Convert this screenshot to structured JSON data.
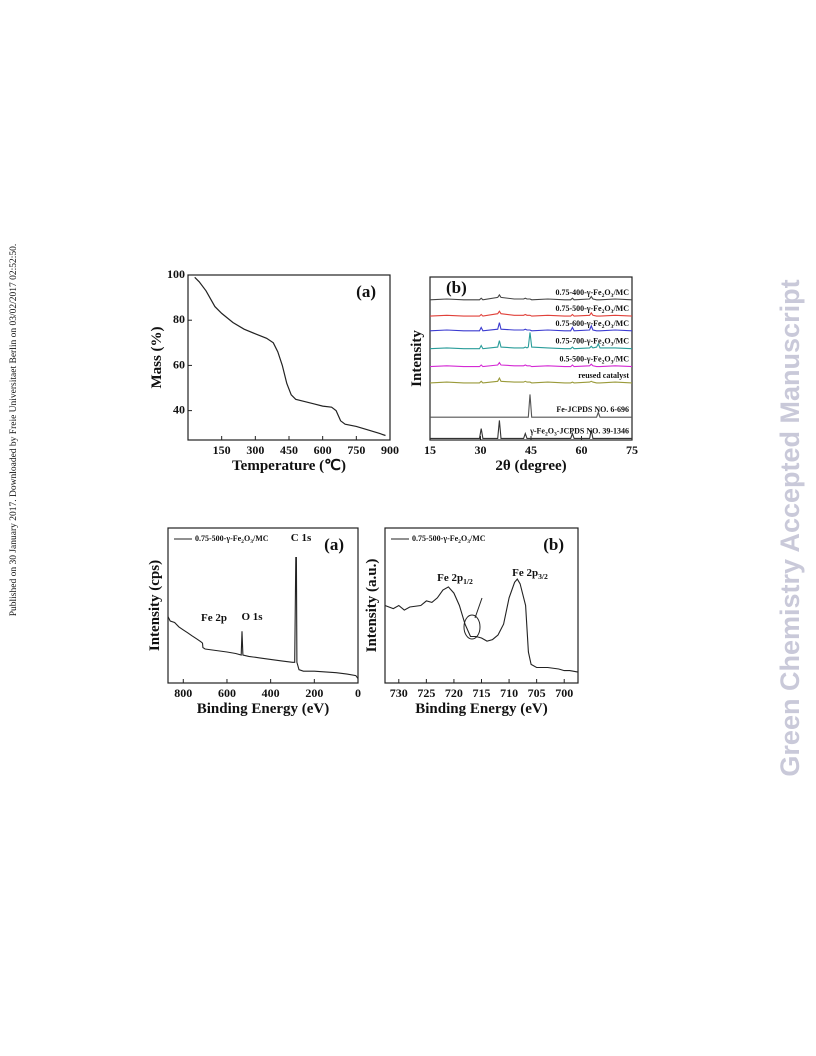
{
  "side_note": "Published on 30 January 2017. Downloaded by Freie Universitaet Berlin on 03/02/2017 02:52:50.",
  "watermark": "Green Chemistry Accepted Manuscript",
  "chart_data": [
    {
      "type": "line",
      "panel_label": "(a)",
      "x_label": "Temperature (℃)",
      "y_label": "Mass (%)",
      "color": "#222222",
      "x": [
        30,
        50,
        80,
        120,
        150,
        200,
        250,
        300,
        350,
        380,
        400,
        420,
        440,
        460,
        480,
        520,
        560,
        600,
        640,
        660,
        680,
        700,
        750,
        800,
        850,
        880
      ],
      "values": [
        99,
        97,
        93,
        86,
        83,
        79,
        76,
        74,
        72,
        70,
        66,
        60,
        52,
        47,
        45,
        44,
        43,
        42,
        41.5,
        40,
        35.5,
        34,
        33,
        31.5,
        30,
        29
      ],
      "xlim": [
        0,
        900
      ],
      "xticks": [
        150,
        300,
        450,
        600,
        750,
        900
      ],
      "ylim": [
        27,
        100
      ],
      "yticks": [
        40,
        60,
        80,
        100
      ]
    },
    {
      "type": "line",
      "panel_label": "(b)",
      "x_label": "2θ (degree)",
      "y_label": "Intensity",
      "x": [
        15,
        20,
        25,
        29.7,
        30.2,
        30.7,
        35.1,
        35.6,
        36.1,
        40,
        42.8,
        43.3,
        43.8,
        44.2,
        44.7,
        45.2,
        50,
        55,
        56.8,
        57.3,
        57.8,
        62.4,
        62.9,
        63.4,
        64.5,
        65,
        65.5,
        70,
        75
      ],
      "series": [
        {
          "name": "0.75-400-γ-Fe2O3/MC",
          "color": "#444444",
          "values": [
            86,
            86.5,
            86,
            86,
            87,
            86,
            87.5,
            89,
            87.5,
            86.5,
            86.5,
            87,
            86.5,
            86.5,
            86.5,
            86,
            86.5,
            86,
            86,
            87,
            86,
            86.5,
            88,
            86.5,
            86,
            86,
            86,
            86.5,
            86
          ]
        },
        {
          "name": "0.75-500-γ-Fe2O3/MC",
          "color": "#e0413a",
          "values": [
            76,
            76.5,
            76,
            76,
            77,
            76,
            77.5,
            79,
            77.5,
            76.5,
            76.5,
            77,
            76.5,
            76.5,
            76.5,
            76,
            76.5,
            76,
            76,
            77,
            76,
            76.5,
            78,
            76.5,
            76,
            76,
            76,
            76.5,
            76
          ]
        },
        {
          "name": "0.75-600-γ-Fe2O3/MC",
          "color": "#3b3bd0",
          "values": [
            67,
            67.5,
            67,
            67,
            69,
            67,
            68,
            72,
            68,
            67.5,
            67.5,
            68,
            67.5,
            67.5,
            67.5,
            67,
            67.5,
            67,
            67,
            69,
            67,
            67.5,
            70,
            67.5,
            67,
            67,
            67,
            67.5,
            67
          ]
        },
        {
          "name": "0.75-700-γ-Fe2O3/MC",
          "color": "#2a9d9a",
          "values": [
            56,
            56.5,
            56,
            56,
            58,
            56,
            57,
            61,
            57,
            56.5,
            56.5,
            57,
            56.5,
            57,
            66,
            57,
            56.5,
            56,
            56,
            57,
            56,
            56.5,
            57.5,
            56.5,
            57,
            59,
            56.5,
            56.5,
            56
          ]
        },
        {
          "name": "0.5-500-γ-Fe2O3/MC",
          "color": "#d42ad4",
          "values": [
            45,
            45.5,
            45,
            45,
            46,
            45,
            46,
            47.5,
            46,
            45.5,
            45.5,
            46,
            45.5,
            45.5,
            45.5,
            45,
            45.5,
            45,
            45,
            46,
            45,
            45.5,
            46.5,
            45.5,
            45,
            45,
            45,
            45.5,
            45
          ]
        },
        {
          "name": "reused catalyst",
          "color": "#9a9a3a",
          "values": [
            35,
            35.5,
            35,
            35,
            36,
            35,
            36,
            38,
            36,
            35.5,
            35.5,
            36,
            35.5,
            35.5,
            35.5,
            35,
            35.5,
            35,
            35,
            35.5,
            35,
            35.5,
            36,
            35.5,
            35,
            35,
            35,
            35.5,
            35
          ]
        },
        {
          "name": "Fe-JCPDS NO. 6-696",
          "color": "#555555",
          "values": [
            14,
            14,
            14,
            14,
            14,
            14,
            14,
            14,
            14,
            14,
            14,
            14,
            14,
            14,
            28,
            14,
            14,
            14,
            14,
            14,
            14,
            14,
            14,
            14,
            14,
            17,
            14,
            14,
            14
          ]
        },
        {
          "name": "γ-Fe2O3-JCPDS NO. 39-1346",
          "color": "#333333",
          "values": [
            1,
            1,
            1,
            1,
            7,
            1,
            1,
            12,
            1,
            1,
            1,
            4,
            1,
            1,
            1,
            1,
            1,
            1,
            1,
            4,
            1,
            1,
            6,
            1,
            1,
            1,
            1,
            1,
            1
          ]
        }
      ],
      "xlim": [
        15,
        75
      ],
      "xticks": [
        15,
        30,
        45,
        60,
        75
      ],
      "ylim": [
        0,
        100
      ]
    },
    {
      "type": "line",
      "panel_label": "(a)",
      "x_label": "Binding Energy (eV)",
      "y_label": "Intensity (cps)",
      "annotations": [
        "Fe 2p",
        "O 1s",
        "C 1s"
      ],
      "x": [
        870,
        860,
        840,
        820,
        800,
        780,
        760,
        740,
        720,
        712,
        710,
        700,
        650,
        600,
        560,
        535,
        531,
        527,
        500,
        450,
        400,
        350,
        300,
        290,
        285,
        282,
        280,
        270,
        250,
        200,
        100,
        50,
        10,
        0
      ],
      "series": [
        {
          "name": "0.75-500-γ-Fe2O3/MC",
          "color": "#222222",
          "values": [
            40,
            37,
            36,
            33,
            31,
            29,
            27,
            25,
            23,
            22,
            19,
            18,
            17,
            16,
            15,
            14,
            30,
            14,
            13,
            12,
            11,
            10,
            9,
            9,
            80,
            80,
            9,
            4,
            3,
            3,
            2,
            1,
            0,
            -2
          ]
        }
      ],
      "xlim": [
        870,
        0
      ],
      "xticks": [
        800,
        600,
        400,
        200,
        0
      ],
      "ylim": [
        -5,
        100
      ]
    },
    {
      "type": "line",
      "panel_label": "(b)",
      "x_label": "Binding Energy (eV)",
      "y_label": "Intensity (a.u.)",
      "annotations": [
        "Fe 2p1/2",
        "Fe 2p3/2"
      ],
      "x": [
        732.5,
        731,
        730,
        729,
        728,
        726,
        725,
        724,
        723,
        722,
        721,
        720,
        719,
        718,
        717,
        716,
        715,
        714,
        713,
        712,
        711,
        710,
        709,
        708.5,
        708,
        707,
        706.5,
        706,
        705,
        703,
        701,
        700,
        699,
        697.5
      ],
      "series": [
        {
          "name": "0.75-500-γ-Fe2O3/MC",
          "color": "#222222",
          "values": [
            50,
            48,
            50,
            47,
            49,
            50,
            53,
            52,
            55,
            60,
            62,
            58,
            50,
            38,
            30,
            30,
            29,
            27,
            28,
            31,
            38,
            55,
            65,
            67,
            64,
            50,
            20,
            12,
            10,
            10,
            9,
            8,
            8,
            7
          ]
        }
      ],
      "xlim": [
        732.5,
        697.5
      ],
      "xticks": [
        730,
        725,
        720,
        715,
        710,
        705,
        700
      ],
      "ylim": [
        0,
        100
      ]
    }
  ]
}
